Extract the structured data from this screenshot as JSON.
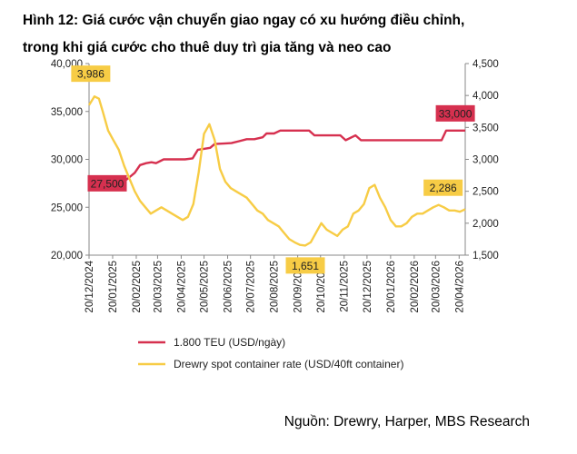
{
  "figure": {
    "title_line1": "Hình 12: Giá cước vận chuyển giao ngay có xu hướng điều chỉnh,",
    "title_line2": "trong khi giá cước cho thuê duy trì gia tăng và neo cao",
    "source": "Nguồn: Drewry, Harper, MBS Research"
  },
  "chart_data": {
    "type": "line",
    "x_tick_labels": [
      "20/12/2024",
      "20/01/2025",
      "20/02/2025",
      "20/03/2025",
      "20/04/2025",
      "20/05/2025",
      "20/06/2025",
      "20/07/2025",
      "20/08/2025",
      "20/09/2025",
      "20/10/2025",
      "20/11/2025",
      "20/12/2025",
      "20/01/2026",
      "20/02/2026",
      "20/03/2026",
      "20/04/2026"
    ],
    "y_left": {
      "range": [
        20000,
        40000
      ],
      "ticks": [
        "20,000",
        "25,000",
        "30,000",
        "35,000",
        "40,000"
      ]
    },
    "y_right": {
      "range": [
        1500,
        4500
      ],
      "ticks": [
        "1,500",
        "2,000",
        "2,500",
        "3,000",
        "3,500",
        "4,000",
        "4,500"
      ]
    },
    "grid": false,
    "legend_position": "bottom-left",
    "colors": {
      "charter": "#d6304f",
      "drewry": "#f7cc45",
      "label_text": "#222222",
      "axis": "#888888"
    },
    "series": [
      {
        "name": "1.800 TEU (USD/ngày)",
        "axis": "left",
        "color": "#d6304f",
        "points": [
          [
            "2024-12-20",
            27500
          ],
          [
            "2024-12-28",
            27500
          ],
          [
            "2025-01-05",
            27700
          ],
          [
            "2025-01-15",
            27700
          ],
          [
            "2025-01-25",
            27750
          ],
          [
            "2025-02-05",
            27750
          ],
          [
            "2025-02-12",
            28200
          ],
          [
            "2025-02-18",
            28600
          ],
          [
            "2025-02-25",
            29400
          ],
          [
            "2025-03-05",
            29600
          ],
          [
            "2025-03-12",
            29700
          ],
          [
            "2025-03-18",
            29600
          ],
          [
            "2025-03-28",
            30000
          ],
          [
            "2025-04-10",
            30000
          ],
          [
            "2025-04-25",
            30000
          ],
          [
            "2025-05-05",
            30100
          ],
          [
            "2025-05-12",
            31000
          ],
          [
            "2025-05-20",
            31100
          ],
          [
            "2025-05-28",
            31200
          ],
          [
            "2025-06-03",
            31600
          ],
          [
            "2025-06-15",
            31650
          ],
          [
            "2025-06-25",
            31700
          ],
          [
            "2025-07-05",
            31900
          ],
          [
            "2025-07-15",
            32100
          ],
          [
            "2025-07-25",
            32100
          ],
          [
            "2025-08-05",
            32300
          ],
          [
            "2025-08-10",
            32700
          ],
          [
            "2025-08-20",
            32700
          ],
          [
            "2025-08-28",
            33000
          ],
          [
            "2025-09-10",
            33000
          ],
          [
            "2025-09-20",
            33000
          ],
          [
            "2025-10-05",
            33000
          ],
          [
            "2025-10-12",
            32500
          ],
          [
            "2025-10-25",
            32500
          ],
          [
            "2025-11-05",
            32500
          ],
          [
            "2025-11-15",
            32500
          ],
          [
            "2025-11-22",
            32000
          ],
          [
            "2025-12-05",
            32500
          ],
          [
            "2025-12-12",
            32000
          ],
          [
            "2025-12-25",
            32000
          ],
          [
            "2026-01-15",
            32000
          ],
          [
            "2026-02-05",
            32000
          ],
          [
            "2026-02-25",
            32000
          ],
          [
            "2026-03-15",
            32000
          ],
          [
            "2026-03-28",
            32000
          ],
          [
            "2026-04-03",
            33000
          ],
          [
            "2026-04-15",
            33000
          ],
          [
            "2026-04-28",
            33000
          ]
        ]
      },
      {
        "name": "Drewry spot container rate (USD/40ft container)",
        "axis": "right",
        "color": "#f7cc45",
        "points": [
          [
            "2024-12-20",
            3850
          ],
          [
            "2024-12-27",
            3986
          ],
          [
            "2025-01-02",
            3950
          ],
          [
            "2025-01-07",
            3750
          ],
          [
            "2025-01-14",
            3450
          ],
          [
            "2025-01-21",
            3300
          ],
          [
            "2025-01-28",
            3150
          ],
          [
            "2025-02-04",
            2900
          ],
          [
            "2025-02-11",
            2700
          ],
          [
            "2025-02-18",
            2500
          ],
          [
            "2025-02-25",
            2350
          ],
          [
            "2025-03-04",
            2250
          ],
          [
            "2025-03-11",
            2150
          ],
          [
            "2025-03-18",
            2200
          ],
          [
            "2025-03-25",
            2250
          ],
          [
            "2025-04-01",
            2200
          ],
          [
            "2025-04-08",
            2150
          ],
          [
            "2025-04-15",
            2100
          ],
          [
            "2025-04-22",
            2050
          ],
          [
            "2025-04-29",
            2100
          ],
          [
            "2025-05-06",
            2300
          ],
          [
            "2025-05-13",
            2800
          ],
          [
            "2025-05-20",
            3400
          ],
          [
            "2025-05-27",
            3550
          ],
          [
            "2025-06-03",
            3300
          ],
          [
            "2025-06-10",
            2850
          ],
          [
            "2025-06-17",
            2650
          ],
          [
            "2025-06-24",
            2550
          ],
          [
            "2025-07-01",
            2500
          ],
          [
            "2025-07-08",
            2450
          ],
          [
            "2025-07-15",
            2400
          ],
          [
            "2025-07-22",
            2300
          ],
          [
            "2025-07-29",
            2200
          ],
          [
            "2025-08-05",
            2150
          ],
          [
            "2025-08-12",
            2050
          ],
          [
            "2025-08-19",
            2000
          ],
          [
            "2025-08-26",
            1950
          ],
          [
            "2025-09-02",
            1850
          ],
          [
            "2025-09-09",
            1750
          ],
          [
            "2025-09-16",
            1700
          ],
          [
            "2025-09-23",
            1660
          ],
          [
            "2025-09-30",
            1651
          ],
          [
            "2025-10-07",
            1700
          ],
          [
            "2025-10-14",
            1850
          ],
          [
            "2025-10-21",
            2000
          ],
          [
            "2025-10-28",
            1900
          ],
          [
            "2025-11-04",
            1850
          ],
          [
            "2025-11-11",
            1800
          ],
          [
            "2025-11-18",
            1900
          ],
          [
            "2025-11-25",
            1950
          ],
          [
            "2025-12-02",
            2150
          ],
          [
            "2025-12-09",
            2200
          ],
          [
            "2025-12-16",
            2300
          ],
          [
            "2025-12-23",
            2550
          ],
          [
            "2025-12-30",
            2600
          ],
          [
            "2026-01-06",
            2400
          ],
          [
            "2026-01-13",
            2250
          ],
          [
            "2026-01-20",
            2050
          ],
          [
            "2026-01-27",
            1950
          ],
          [
            "2026-02-03",
            1950
          ],
          [
            "2026-02-10",
            2000
          ],
          [
            "2026-02-17",
            2100
          ],
          [
            "2026-02-24",
            2150
          ],
          [
            "2026-03-03",
            2150
          ],
          [
            "2026-03-10",
            2200
          ],
          [
            "2026-03-17",
            2250
          ],
          [
            "2026-03-24",
            2286
          ],
          [
            "2026-03-31",
            2250
          ],
          [
            "2026-04-07",
            2200
          ],
          [
            "2026-04-14",
            2200
          ],
          [
            "2026-04-21",
            2180
          ],
          [
            "2026-04-28",
            2220
          ]
        ]
      }
    ],
    "annotations": [
      {
        "text": "3,986",
        "series": 1,
        "at": [
          "2024-12-27",
          3986
        ],
        "style": "yellow"
      },
      {
        "text": "27,500",
        "series": 0,
        "at": [
          "2024-12-20",
          27500
        ],
        "style": "red"
      },
      {
        "text": "33,000",
        "series": 0,
        "at": [
          "2026-04-15",
          33000
        ],
        "style": "red"
      },
      {
        "text": "2,286",
        "series": 1,
        "at": [
          "2026-03-24",
          2286
        ],
        "style": "yellow"
      },
      {
        "text": "1,651",
        "series": 1,
        "at": [
          "2025-09-30",
          1651
        ],
        "style": "yellow"
      }
    ]
  }
}
